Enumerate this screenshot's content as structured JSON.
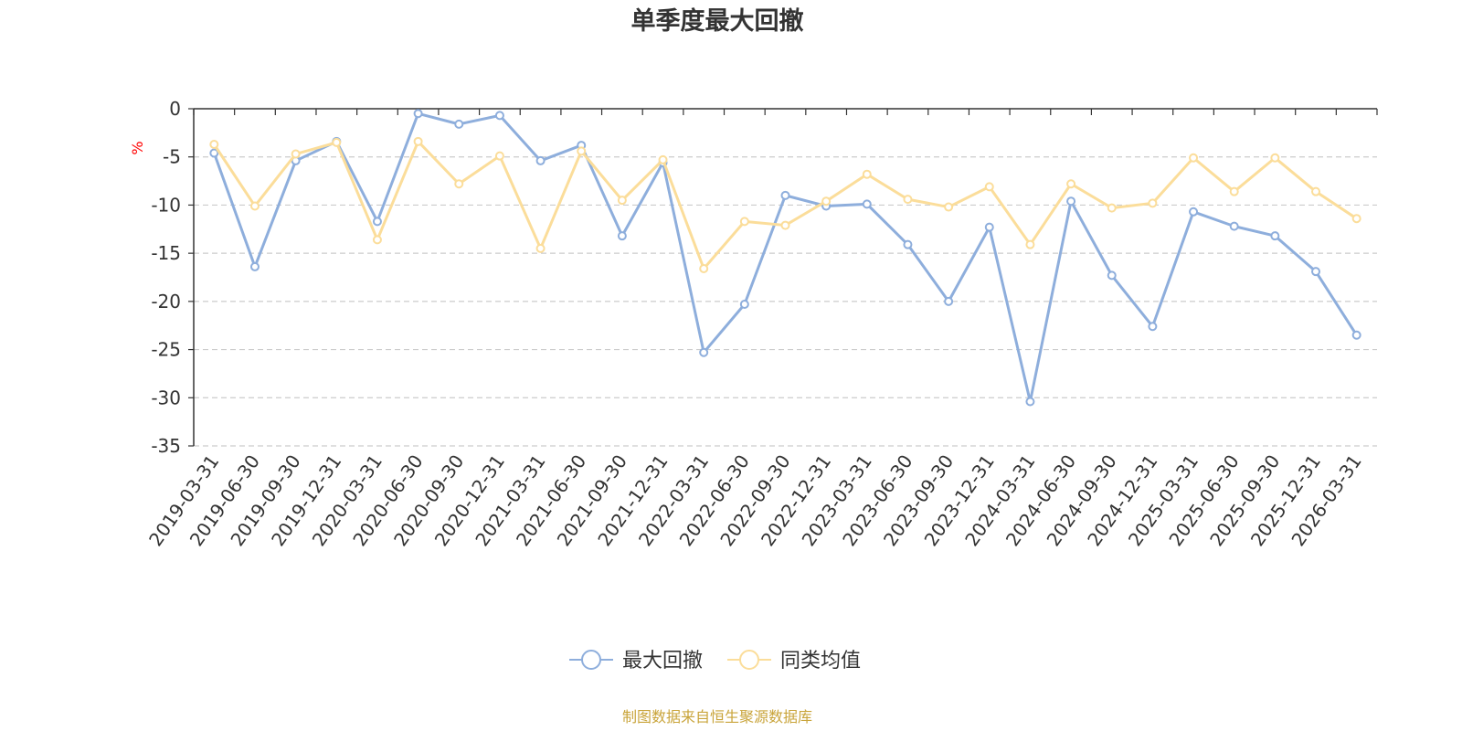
{
  "chart_data": {
    "type": "line",
    "title": "单季度最大回撤",
    "ylabel": "%",
    "ylim": [
      -35,
      0
    ],
    "yticks": [
      0,
      -5,
      -10,
      -15,
      -20,
      -25,
      -30,
      -35
    ],
    "grid": true,
    "legend_position": "bottom-center",
    "x": [
      "2019-03-31",
      "2019-06-30",
      "2019-09-30",
      "2019-12-31",
      "2020-03-31",
      "2020-06-30",
      "2020-09-30",
      "2020-12-31",
      "2021-03-31",
      "2021-06-30",
      "2021-09-30",
      "2021-12-31",
      "2022-03-31",
      "2022-06-30",
      "2022-09-30",
      "2022-12-31",
      "2023-03-31",
      "2023-06-30",
      "2023-09-30",
      "2023-12-31",
      "2024-03-31",
      "2024-06-30",
      "2024-09-30",
      "2024-12-31",
      "2025-03-31",
      "2025-06-30",
      "2025-09-30",
      "2025-12-31",
      "2026-03-31"
    ],
    "series": [
      {
        "name": "最大回撤",
        "color": "#8eaedc",
        "values": [
          -4.6,
          -16.4,
          -5.4,
          -3.4,
          -11.7,
          -0.5,
          -1.6,
          -0.7,
          -5.4,
          -3.8,
          -13.2,
          -5.6,
          -25.3,
          -20.3,
          -9.0,
          -10.1,
          -9.9,
          -14.1,
          -20.0,
          -12.3,
          -30.4,
          -9.6,
          -17.3,
          -22.6,
          -10.7,
          -12.2,
          -13.2,
          -16.9,
          -23.5
        ]
      },
      {
        "name": "同类均值",
        "color": "#fbdd9a",
        "values": [
          -3.7,
          -10.1,
          -4.7,
          -3.5,
          -13.6,
          -3.4,
          -7.8,
          -4.9,
          -14.5,
          -4.4,
          -9.5,
          -5.3,
          -16.6,
          -11.7,
          -12.1,
          -9.6,
          -6.8,
          -9.4,
          -10.2,
          -8.1,
          -14.1,
          -7.8,
          -10.3,
          -9.8,
          -5.1,
          -8.6,
          -5.1,
          -8.6,
          -11.4
        ]
      }
    ]
  },
  "source_note": "制图数据来自恒生聚源数据库",
  "colors": {
    "axis": "#333333",
    "grid": "#cccccc",
    "unit": "#ff0000",
    "source": "#c9a43a"
  }
}
